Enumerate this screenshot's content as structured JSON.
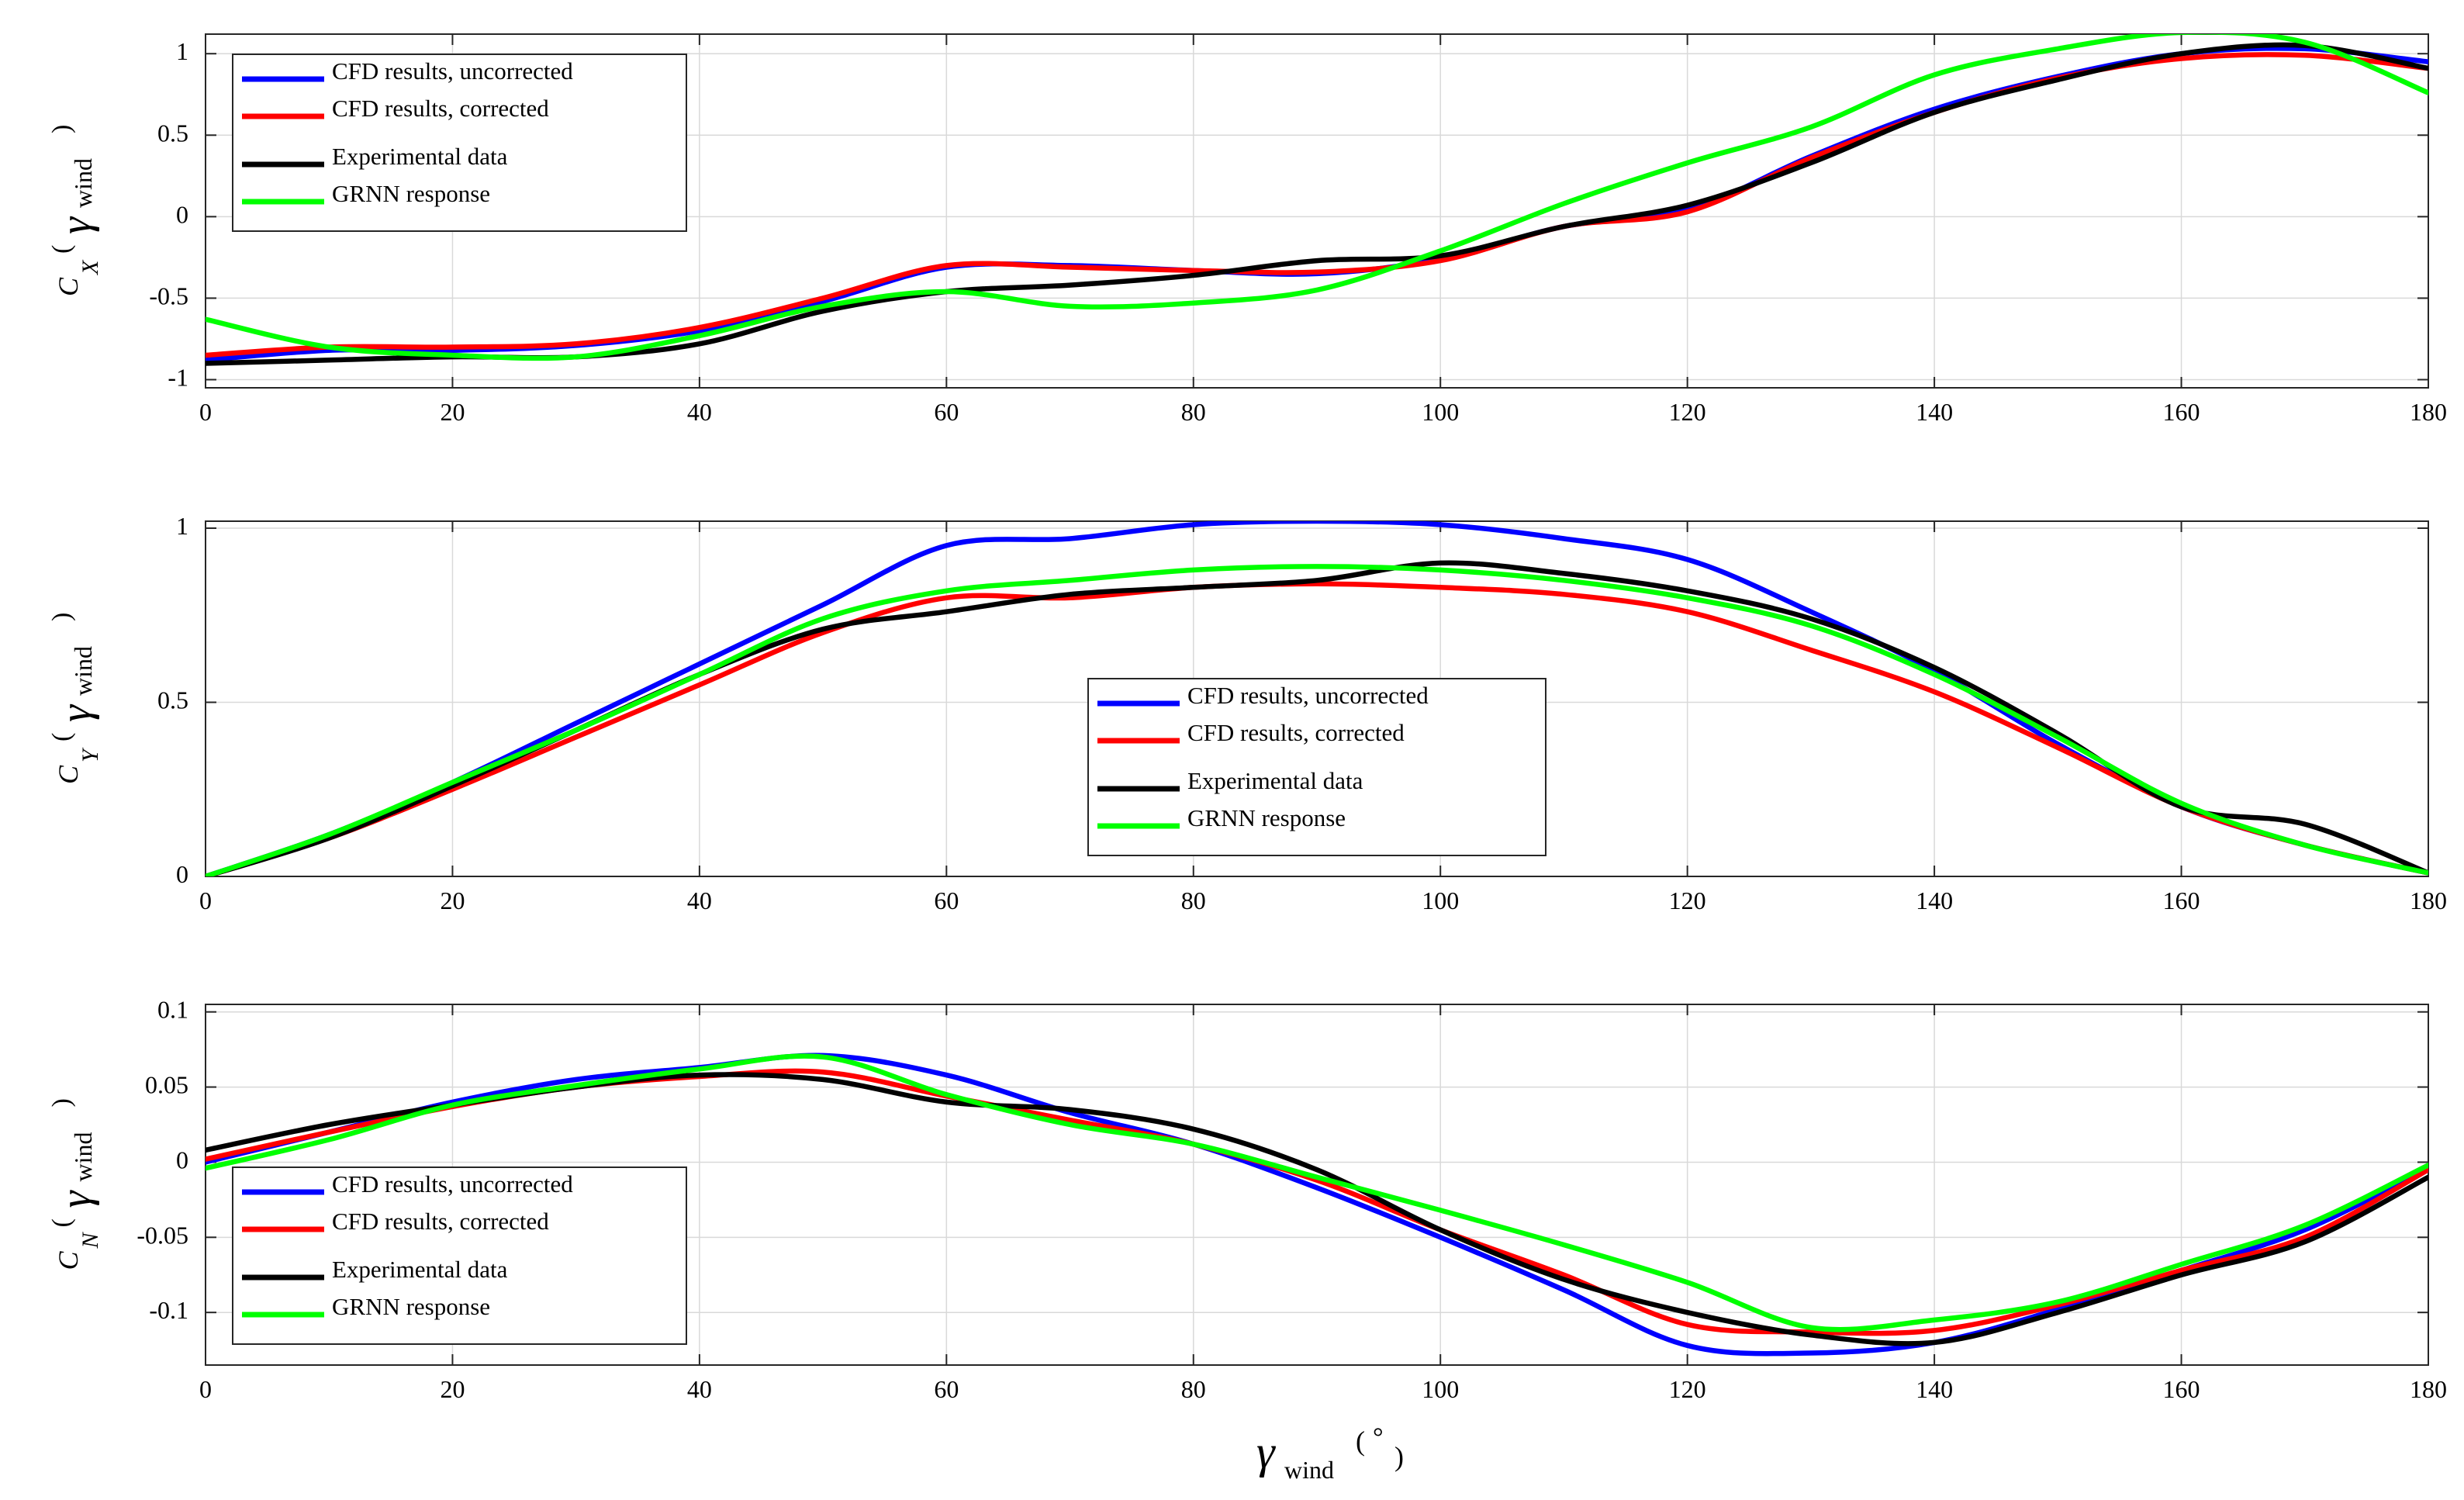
{
  "chart_data": [
    {
      "type": "line",
      "panel": "top",
      "ylabel": {
        "coef": "C",
        "sub": "X",
        "gamma": "γ",
        "wind": "wind",
        "open": "(",
        "close": ")"
      },
      "xlabel": "",
      "xlim": [
        0,
        180
      ],
      "ylim": [
        -1.05,
        1.12
      ],
      "xticks": [
        0,
        20,
        40,
        60,
        80,
        100,
        120,
        140,
        160,
        180
      ],
      "xtick_labels": [
        "0",
        "20",
        "40",
        "60",
        "80",
        "100",
        "120",
        "140",
        "160",
        "180"
      ],
      "yticks": [
        -1,
        -0.5,
        0,
        0.5,
        1
      ],
      "ytick_labels": [
        "-1",
        "-0.5",
        "0",
        "0.5",
        "1"
      ],
      "grid": true,
      "legend_position": "top-left",
      "x": [
        0,
        10,
        20,
        30,
        40,
        50,
        60,
        70,
        80,
        90,
        100,
        110,
        120,
        130,
        140,
        150,
        160,
        170,
        180
      ],
      "series": [
        {
          "name": "CFD results, uncorrected",
          "color": "#0000ff",
          "values": [
            -0.88,
            -0.82,
            -0.82,
            -0.79,
            -0.7,
            -0.52,
            -0.31,
            -0.3,
            -0.33,
            -0.35,
            -0.26,
            -0.06,
            0.04,
            0.37,
            0.66,
            0.86,
            1.0,
            1.03,
            0.95
          ]
        },
        {
          "name": "CFD results, corrected",
          "color": "#ff0000",
          "values": [
            -0.85,
            -0.8,
            -0.8,
            -0.78,
            -0.68,
            -0.5,
            -0.3,
            -0.31,
            -0.33,
            -0.34,
            -0.27,
            -0.06,
            0.03,
            0.36,
            0.64,
            0.85,
            0.97,
            0.99,
            0.91
          ]
        },
        {
          "name": "Experimental data",
          "color": "#000000",
          "values": [
            -0.9,
            -0.88,
            -0.86,
            -0.86,
            -0.78,
            -0.58,
            -0.46,
            -0.42,
            -0.36,
            -0.27,
            -0.24,
            -0.06,
            0.07,
            0.33,
            0.64,
            0.84,
            1.0,
            1.05,
            0.91
          ]
        },
        {
          "name": "GRNN response",
          "color": "#00ff00",
          "values": [
            -0.63,
            -0.8,
            -0.85,
            -0.86,
            -0.73,
            -0.55,
            -0.46,
            -0.55,
            -0.53,
            -0.45,
            -0.21,
            0.08,
            0.33,
            0.55,
            0.87,
            1.03,
            1.13,
            1.07,
            0.76
          ]
        }
      ]
    },
    {
      "type": "line",
      "panel": "middle",
      "ylabel": {
        "coef": "C",
        "sub": "Y",
        "gamma": "γ",
        "wind": "wind",
        "open": "(",
        "close": ")"
      },
      "xlabel": "",
      "xlim": [
        0,
        180
      ],
      "ylim": [
        0,
        1.02
      ],
      "xticks": [
        0,
        20,
        40,
        60,
        80,
        100,
        120,
        140,
        160,
        180
      ],
      "xtick_labels": [
        "0",
        "20",
        "40",
        "60",
        "80",
        "100",
        "120",
        "140",
        "160",
        "180"
      ],
      "yticks": [
        0,
        0.5,
        1
      ],
      "ytick_labels": [
        "0",
        "0.5",
        "1"
      ],
      "grid": true,
      "legend_position": "center",
      "x": [
        0,
        10,
        20,
        30,
        40,
        50,
        60,
        70,
        80,
        90,
        100,
        110,
        120,
        130,
        140,
        150,
        160,
        170,
        180
      ],
      "series": [
        {
          "name": "CFD results, uncorrected",
          "color": "#0000ff",
          "values": [
            0.0,
            0.12,
            0.27,
            0.44,
            0.61,
            0.78,
            0.95,
            0.97,
            1.01,
            1.02,
            1.01,
            0.97,
            0.91,
            0.76,
            0.59,
            0.38,
            0.2,
            0.09,
            0.01
          ]
        },
        {
          "name": "CFD results, corrected",
          "color": "#ff0000",
          "values": [
            0.0,
            0.11,
            0.25,
            0.4,
            0.55,
            0.7,
            0.8,
            0.8,
            0.83,
            0.84,
            0.83,
            0.81,
            0.76,
            0.65,
            0.53,
            0.37,
            0.2,
            0.09,
            0.01
          ]
        },
        {
          "name": "Experimental data",
          "color": "#000000",
          "values": [
            0.0,
            0.11,
            0.26,
            0.42,
            0.58,
            0.71,
            0.76,
            0.81,
            0.83,
            0.85,
            0.9,
            0.87,
            0.82,
            0.74,
            0.6,
            0.41,
            0.2,
            0.15,
            0.01
          ]
        },
        {
          "name": "GRNN response",
          "color": "#00ff00",
          "values": [
            0.0,
            0.12,
            0.27,
            0.42,
            0.58,
            0.74,
            0.82,
            0.85,
            0.88,
            0.89,
            0.88,
            0.85,
            0.8,
            0.72,
            0.58,
            0.4,
            0.21,
            0.09,
            0.01
          ]
        }
      ]
    },
    {
      "type": "line",
      "panel": "bottom",
      "ylabel": {
        "coef": "C",
        "sub": "N",
        "gamma": "γ",
        "wind": "wind",
        "open": "(",
        "close": ")"
      },
      "xlabel": {
        "gamma": "γ",
        "wind": "wind",
        "open": "(",
        "degree": "°",
        "close": ")"
      },
      "xlim": [
        0,
        180
      ],
      "ylim": [
        -0.135,
        0.105
      ],
      "xticks": [
        0,
        20,
        40,
        60,
        80,
        100,
        120,
        140,
        160,
        180
      ],
      "xtick_labels": [
        "0",
        "20",
        "40",
        "60",
        "80",
        "100",
        "120",
        "140",
        "160",
        "180"
      ],
      "yticks": [
        -0.1,
        -0.05,
        0,
        0.05,
        0.1
      ],
      "ytick_labels": [
        "-0.1",
        "-0.05",
        "0",
        "0.05",
        "0.1"
      ],
      "grid": true,
      "legend_position": "bottom-left",
      "x": [
        0,
        10,
        20,
        30,
        40,
        50,
        60,
        70,
        80,
        90,
        100,
        110,
        120,
        130,
        140,
        150,
        160,
        170,
        180
      ],
      "series": [
        {
          "name": "CFD results, uncorrected",
          "color": "#0000ff",
          "values": [
            0.0,
            0.02,
            0.04,
            0.055,
            0.063,
            0.071,
            0.058,
            0.033,
            0.012,
            -0.017,
            -0.05,
            -0.085,
            -0.122,
            -0.127,
            -0.12,
            -0.098,
            -0.072,
            -0.045,
            -0.004
          ]
        },
        {
          "name": "CFD results, corrected",
          "color": "#ff0000",
          "values": [
            0.002,
            0.02,
            0.037,
            0.05,
            0.057,
            0.06,
            0.044,
            0.028,
            0.012,
            -0.012,
            -0.045,
            -0.075,
            -0.108,
            -0.113,
            -0.112,
            -0.095,
            -0.072,
            -0.05,
            -0.005
          ]
        },
        {
          "name": "Experimental data",
          "color": "#000000",
          "values": [
            0.008,
            0.025,
            0.038,
            0.05,
            0.058,
            0.055,
            0.04,
            0.035,
            0.022,
            -0.005,
            -0.045,
            -0.078,
            -0.1,
            -0.115,
            -0.12,
            -0.1,
            -0.075,
            -0.053,
            -0.01
          ]
        },
        {
          "name": "GRNN response",
          "color": "#00ff00",
          "values": [
            -0.004,
            0.015,
            0.038,
            0.051,
            0.062,
            0.07,
            0.045,
            0.025,
            0.012,
            -0.01,
            -0.032,
            -0.055,
            -0.08,
            -0.11,
            -0.105,
            -0.093,
            -0.068,
            -0.042,
            -0.002
          ]
        }
      ]
    }
  ]
}
